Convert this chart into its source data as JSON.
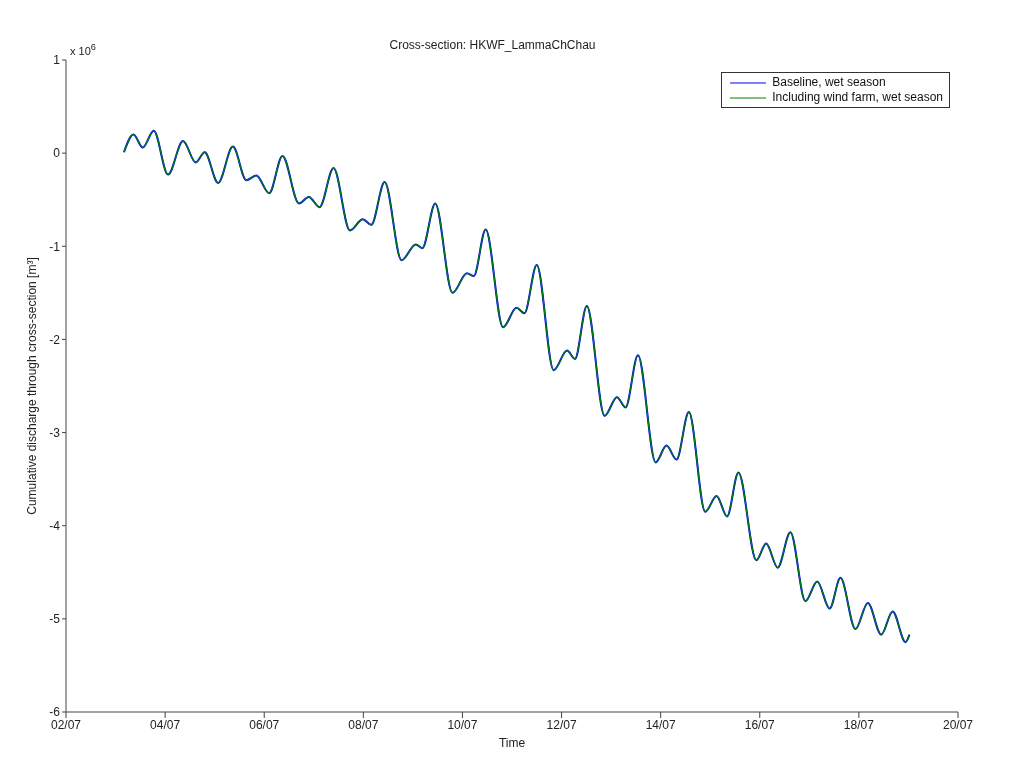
{
  "chart_data": {
    "type": "line",
    "title": "Cross-section: HKWF_LammaChChau",
    "xlabel": "Time",
    "ylabel": "Cumulative discharge through cross-section [m³]",
    "annotations": [
      "x 10$^{6}$"
    ],
    "x": [
      "--07-03T04:05",
      "--07-03T08:40",
      "--07-03T13:10",
      "--07-03T18:30",
      "--07-04T01:25",
      "--07-04T08:40",
      "--07-04T14:50",
      "--07-04T19:10",
      "--07-05T01:40",
      "--07-05T08:50",
      "--07-05T15:20",
      "--07-05T20:10",
      "--07-06T02:25",
      "--07-06T08:50",
      "--07-06T16:50",
      "--07-06T21:35",
      "--07-07T02:50",
      "--07-07T09:35",
      "--07-07T17:30",
      "--07-07T23:45",
      "--07-08T03:50",
      "--07-08T10:20",
      "--07-08T18:30",
      "--07-09T01:25",
      "--07-09T04:35",
      "--07-09T10:50",
      "--07-09T19:10",
      "--07-10T02:10",
      "--07-10T05:30",
      "--07-10T11:15",
      "--07-10T19:40",
      "--07-11T02:10",
      "--07-11T06:00",
      "--07-11T12:00",
      "--07-11T20:10",
      "--07-12T02:40",
      "--07-12T06:30",
      "--07-12T12:15",
      "--07-12T20:50",
      "--07-13T02:50",
      "--07-13T07:00",
      "--07-13T13:00",
      "--07-13T21:35",
      "--07-14T02:50",
      "--07-14T07:40",
      "--07-14T13:40",
      "--07-14T21:35",
      "--07-15T03:05",
      "--07-15T08:10",
      "--07-15T13:40",
      "--07-15T22:20",
      "--07-16T03:05",
      "--07-16T08:40",
      "--07-16T14:50",
      "--07-16T22:05",
      "--07-17T03:50",
      "--07-17T09:50",
      "--07-17T15:05",
      "--07-17T22:20",
      "--07-18T04:20",
      "--07-18T10:50",
      "--07-18T16:20",
      "--07-18T22:35",
      "--07-19T00:30"
    ],
    "series": [
      {
        "name": "Baseline, wet season",
        "color": "#0000ff",
        "values": [
          0.01,
          0.2,
          0.06,
          0.24,
          -0.23,
          0.13,
          -0.1,
          0.01,
          -0.32,
          0.07,
          -0.29,
          -0.24,
          -0.43,
          -0.03,
          -0.54,
          -0.47,
          -0.58,
          -0.16,
          -0.83,
          -0.71,
          -0.77,
          -0.31,
          -1.15,
          -0.98,
          -1.02,
          -0.54,
          -1.5,
          -1.29,
          -1.32,
          -0.82,
          -1.87,
          -1.66,
          -1.72,
          -1.2,
          -2.33,
          -2.12,
          -2.21,
          -1.64,
          -2.82,
          -2.62,
          -2.73,
          -2.17,
          -3.32,
          -3.14,
          -3.29,
          -2.78,
          -3.85,
          -3.68,
          -3.9,
          -3.43,
          -4.37,
          -4.19,
          -4.45,
          -4.07,
          -4.81,
          -4.6,
          -4.89,
          -4.56,
          -5.11,
          -4.83,
          -5.17,
          -4.92,
          -5.25,
          -5.17
        ]
      },
      {
        "name": "Including wind farm, wet season",
        "color": "#008000",
        "values": [
          0.01,
          0.2,
          0.06,
          0.24,
          -0.23,
          0.13,
          -0.1,
          0.01,
          -0.32,
          0.07,
          -0.29,
          -0.24,
          -0.43,
          -0.03,
          -0.54,
          -0.47,
          -0.58,
          -0.16,
          -0.83,
          -0.71,
          -0.77,
          -0.31,
          -1.15,
          -0.98,
          -1.02,
          -0.54,
          -1.5,
          -1.29,
          -1.32,
          -0.82,
          -1.87,
          -1.66,
          -1.72,
          -1.2,
          -2.33,
          -2.12,
          -2.21,
          -1.64,
          -2.82,
          -2.62,
          -2.73,
          -2.17,
          -3.32,
          -3.14,
          -3.29,
          -2.78,
          -3.85,
          -3.68,
          -3.9,
          -3.43,
          -4.37,
          -4.19,
          -4.45,
          -4.07,
          -4.81,
          -4.6,
          -4.89,
          -4.56,
          -5.11,
          -4.83,
          -5.17,
          -4.92,
          -5.25,
          -5.17
        ]
      }
    ],
    "xlim": [
      "--07-02",
      "--07-20"
    ],
    "xticks": [
      {
        "value": "--07-02",
        "label": "02/07"
      },
      {
        "value": "--07-04",
        "label": "04/07"
      },
      {
        "value": "--07-06",
        "label": "06/07"
      },
      {
        "value": "--07-08",
        "label": "08/07"
      },
      {
        "value": "--07-10",
        "label": "10/07"
      },
      {
        "value": "--07-12",
        "label": "12/07"
      },
      {
        "value": "--07-14",
        "label": "14/07"
      },
      {
        "value": "--07-16",
        "label": "16/07"
      },
      {
        "value": "--07-18",
        "label": "18/07"
      },
      {
        "value": "--07-20",
        "label": "20/07"
      }
    ],
    "ylim": [
      -6,
      1
    ],
    "yticks": [
      -6,
      -5,
      -4,
      -3,
      -2,
      -1,
      0,
      1
    ],
    "grid": false,
    "legend": "top right",
    "marker": "none",
    "line_style": "solid"
  }
}
